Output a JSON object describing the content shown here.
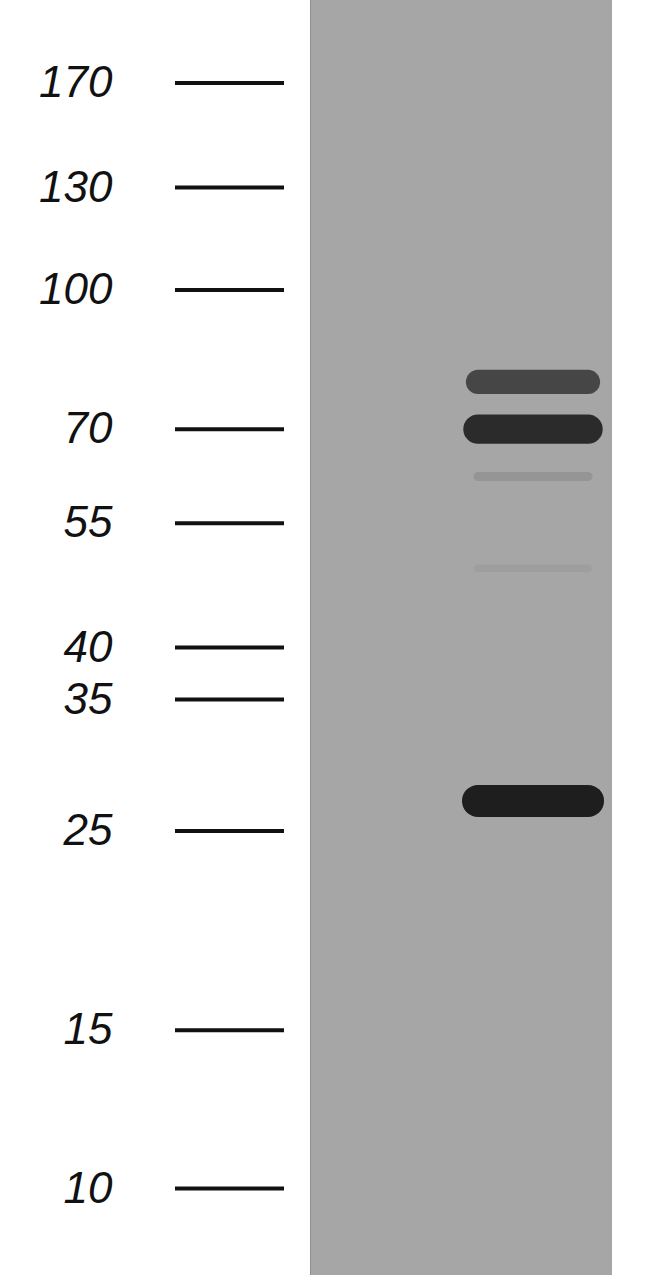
{
  "chart_data": {
    "type": "blot",
    "log": "y",
    "ylim": [
      8,
      210
    ],
    "yticks": [
      170,
      130,
      100,
      70,
      55,
      40,
      35,
      25,
      15,
      10
    ],
    "color": "#1e1e1e",
    "bands": {
      "mw": [
        79,
        70,
        62,
        49,
        27
      ],
      "intensity": [
        0.7,
        0.9,
        0.12,
        0.06,
        1.0
      ]
    }
  }
}
